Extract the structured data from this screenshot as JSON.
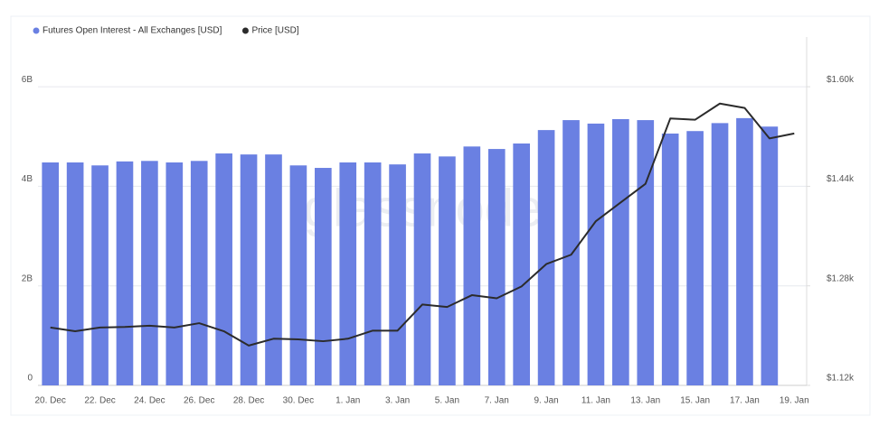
{
  "chart_data": {
    "type": "bar_line",
    "watermark": "glassnode",
    "categories": [
      "20. Dec",
      null,
      "22. Dec",
      null,
      "24. Dec",
      null,
      "26. Dec",
      null,
      "28. Dec",
      null,
      "30. Dec",
      null,
      "1. Jan",
      null,
      "3. Jan",
      null,
      "5. Jan",
      null,
      "7. Jan",
      null,
      "9. Jan",
      null,
      "11. Jan",
      null,
      "13. Jan",
      null,
      "15. Jan",
      null,
      "17. Jan",
      null,
      "19. Jan"
    ],
    "series": [
      {
        "name": "Futures Open Interest - All Exchanges [USD]",
        "color": "#6a80e2",
        "kind": "bar",
        "values": [
          4480000000,
          4480000000,
          4420000000,
          4500000000,
          4510000000,
          4480000000,
          4510000000,
          4660000000,
          4640000000,
          4640000000,
          4420000000,
          4370000000,
          4480000000,
          4480000000,
          4440000000,
          4660000000,
          4600000000,
          4800000000,
          4750000000,
          4860000000,
          5130000000,
          5330000000,
          5260000000,
          5350000000,
          5330000000,
          5060000000,
          5110000000,
          5270000000,
          5370000000,
          5200000000,
          null
        ]
      },
      {
        "name": "Price [USD]",
        "color": "#2b2b2b",
        "kind": "line",
        "axis": "y2",
        "values": [
          1213,
          1207,
          1213,
          1214,
          1216,
          1213,
          1220,
          1207,
          1184,
          1195,
          1194,
          1191,
          1195,
          1208,
          1208,
          1250,
          1246,
          1265,
          1260,
          1279,
          1315,
          1330,
          1384,
          1414,
          1444,
          1549,
          1547,
          1573,
          1566,
          1517,
          1525
        ]
      }
    ],
    "ylim": [
      0,
      7000000000
    ],
    "yticks": [
      0,
      {
        "value": 2000000000,
        "label": "2B"
      },
      {
        "value": 4000000000,
        "label": "4B"
      },
      {
        "value": 6000000000,
        "label": "6B"
      }
    ],
    "y2lim": [
      1120,
      1680
    ],
    "y2ticks": [
      {
        "value": 1120,
        "label": "$1.12k"
      },
      {
        "value": 1280,
        "label": "$1.28k"
      },
      {
        "value": 1440,
        "label": "$1.44k"
      },
      {
        "value": 1600,
        "label": "$1.60k"
      }
    ],
    "grid": true,
    "legend": "top-left"
  }
}
